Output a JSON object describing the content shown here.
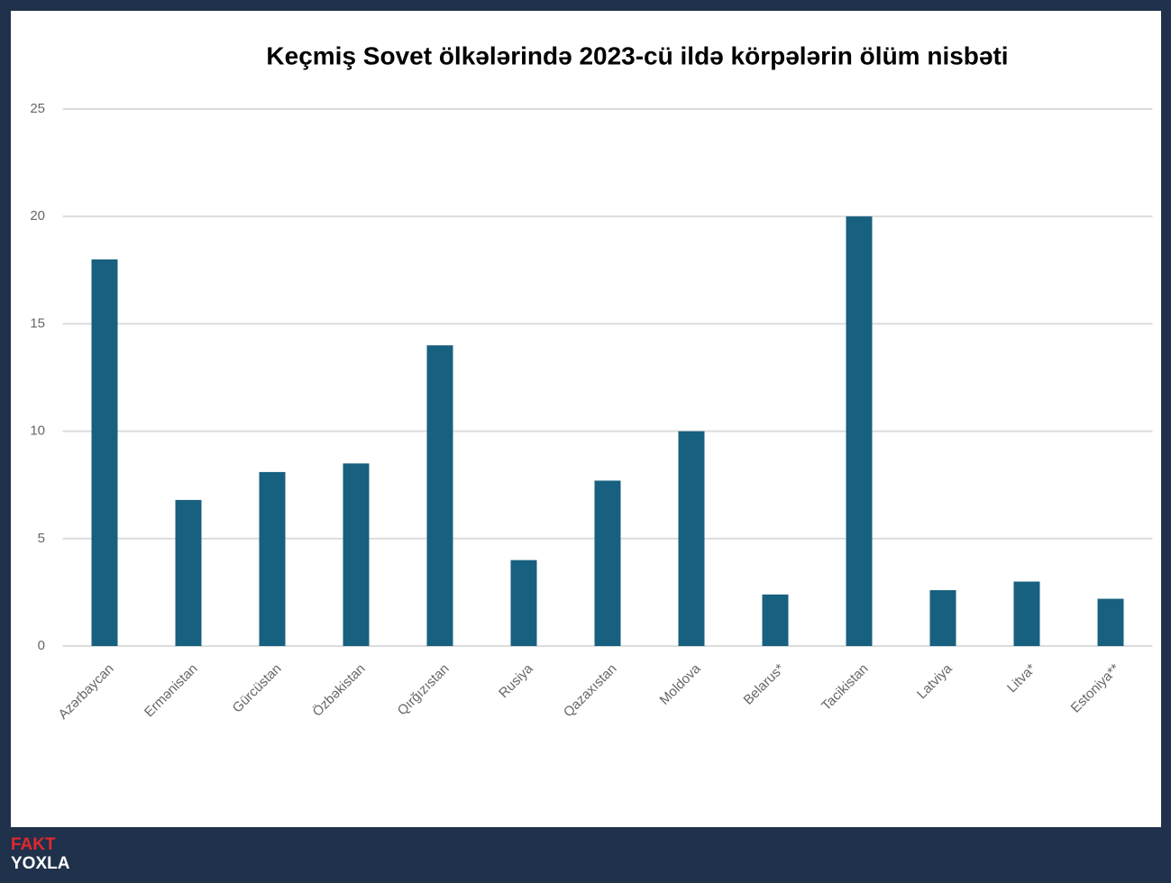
{
  "chart_data": {
    "type": "bar",
    "title": "Keçmiş Sovet ölkələrində 2023-cü ildə körpələrin ölüm nisbəti",
    "categories": [
      "Azərbaycan",
      "Ermənistan",
      "Gürcüstan",
      "Özbəkistan",
      "Qırğızıstan",
      "Rusiya",
      "Qazaxıstan",
      "Moldova",
      "Belarus*",
      "Tacikistan",
      "Latviya",
      "Litva*",
      "Estoniya**"
    ],
    "values": [
      18,
      6.8,
      8.1,
      8.5,
      14,
      4,
      7.7,
      10,
      2.4,
      20,
      2.6,
      3,
      2.2
    ],
    "color": "#17607f",
    "ylim": [
      0,
      25
    ],
    "yticks": [
      0,
      5,
      10,
      15,
      20,
      25
    ],
    "grid": true
  },
  "brand": {
    "top": "FAKT",
    "bottom": "YOXLA"
  }
}
